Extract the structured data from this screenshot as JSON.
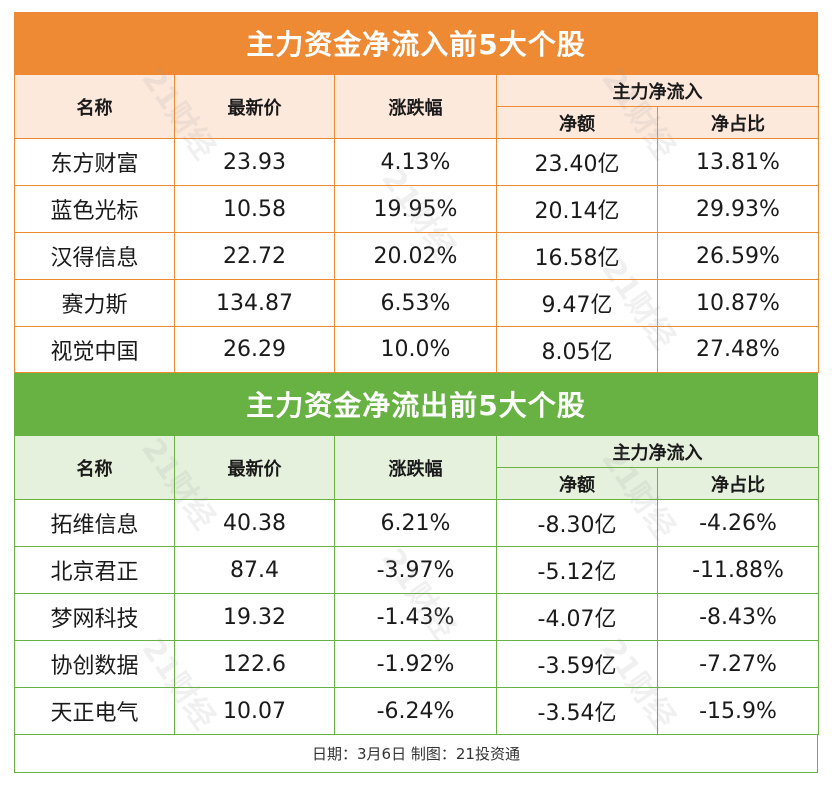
{
  "inflow": {
    "title": "主力资金净流入前5大个股",
    "headers": {
      "name": "名称",
      "price": "最新价",
      "change": "涨跌幅",
      "group": "主力净流入",
      "net": "净额",
      "ratio": "净占比"
    },
    "rows": [
      {
        "name": "东方财富",
        "price": "23.93",
        "change": "4.13%",
        "net": "23.40亿",
        "ratio": "13.81%"
      },
      {
        "name": "蓝色光标",
        "price": "10.58",
        "change": "19.95%",
        "net": "20.14亿",
        "ratio": "29.93%"
      },
      {
        "name": "汉得信息",
        "price": "22.72",
        "change": "20.02%",
        "net": "16.58亿",
        "ratio": "26.59%"
      },
      {
        "name": "赛力斯",
        "price": "134.87",
        "change": "6.53%",
        "net": "9.47亿",
        "ratio": "10.87%"
      },
      {
        "name": "视觉中国",
        "price": "26.29",
        "change": "10.0%",
        "net": "8.05亿",
        "ratio": "27.48%"
      }
    ]
  },
  "outflow": {
    "title": "主力资金净流出前5大个股",
    "headers": {
      "name": "名称",
      "price": "最新价",
      "change": "涨跌幅",
      "group": "主力净流入",
      "net": "净额",
      "ratio": "净占比"
    },
    "rows": [
      {
        "name": "拓维信息",
        "price": "40.38",
        "change": "6.21%",
        "net": "-8.30亿",
        "ratio": "-4.26%"
      },
      {
        "name": "北京君正",
        "price": "87.4",
        "change": "-3.97%",
        "net": "-5.12亿",
        "ratio": "-11.88%"
      },
      {
        "name": "梦网科技",
        "price": "19.32",
        "change": "-1.43%",
        "net": "-4.07亿",
        "ratio": "-8.43%"
      },
      {
        "name": "协创数据",
        "price": "122.6",
        "change": "-1.92%",
        "net": "-3.59亿",
        "ratio": "-7.27%"
      },
      {
        "name": "天正电气",
        "price": "10.07",
        "change": "-6.24%",
        "net": "-3.54亿",
        "ratio": "-15.9%"
      }
    ]
  },
  "footer": "日期：3月6日 制图：21投资通",
  "watermark": "21财经",
  "colors": {
    "inflow_accent": "#ef8a34",
    "outflow_accent": "#68b244"
  }
}
